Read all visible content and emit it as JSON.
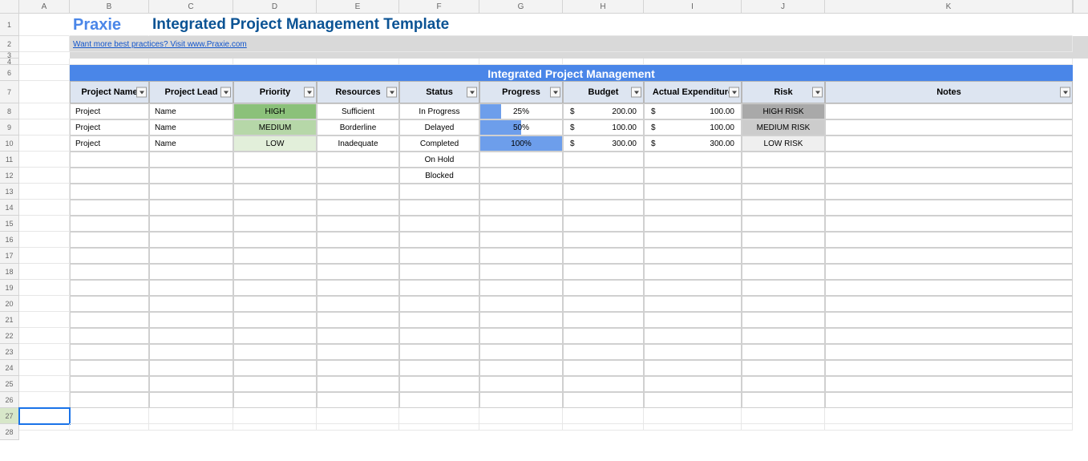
{
  "columns": {
    "letters": [
      "A",
      "B",
      "C",
      "D",
      "E",
      "F",
      "G",
      "H",
      "I",
      "J",
      "K"
    ],
    "widths": [
      63,
      99,
      105,
      104,
      103,
      100,
      104,
      101,
      122,
      104,
      309
    ]
  },
  "rows": {
    "labels_visible": [
      "1",
      "2",
      "3",
      "4",
      "6",
      "7",
      "8",
      "9",
      "10",
      "11",
      "12",
      "13",
      "14",
      "15",
      "16",
      "17",
      "18",
      "19",
      "20",
      "21",
      "22",
      "23",
      "24",
      "25",
      "26",
      "27",
      "28"
    ],
    "title_row_index": 0,
    "link_row_index": 1,
    "thin_row_index": 2,
    "hidden_row_index": 3,
    "banner_row_index": 4,
    "header_row_index": 5,
    "selected_label": "27"
  },
  "brand": {
    "name": "Praxie"
  },
  "title": "Integrated Project Management Template",
  "link": {
    "text": "Want more best practices? Visit www.Praxie.com"
  },
  "banner": "Integrated Project Management",
  "headers": [
    "Project Name",
    "Project Lead",
    "Priority",
    "Resources",
    "Status",
    "Progress",
    "Budget",
    "Actual Expenditure",
    "Risk",
    "Notes"
  ],
  "priority_colors": {
    "HIGH": "#8bc17a",
    "MEDIUM": "#b6d7a8",
    "LOW": "#e2efda"
  },
  "risk_colors": {
    "HIGH RISK": "#a9a9a9",
    "MEDIUM RISK": "#cccccc",
    "LOW RISK": "#efefef"
  },
  "progress_bar_color": "#6d9eeb",
  "table": {
    "rows": [
      {
        "name": "Project",
        "lead": "Name",
        "priority": "HIGH",
        "resources": "Sufficient",
        "status": "In Progress",
        "progress": 25,
        "budget": "200.00",
        "actual": "100.00",
        "risk": "HIGH RISK",
        "notes": ""
      },
      {
        "name": "Project",
        "lead": "Name",
        "priority": "MEDIUM",
        "resources": "Borderline",
        "status": "Delayed",
        "progress": 50,
        "budget": "100.00",
        "actual": "100.00",
        "risk": "MEDIUM RISK",
        "notes": ""
      },
      {
        "name": "Project",
        "lead": "Name",
        "priority": "LOW",
        "resources": "Inadequate",
        "status": "Completed",
        "progress": 100,
        "budget": "300.00",
        "actual": "300.00",
        "risk": "LOW RISK",
        "notes": ""
      }
    ],
    "extra_status": [
      "On Hold",
      "Blocked"
    ],
    "empty_rows": 14
  },
  "currency_symbol": "$",
  "colors": {
    "banner_bg": "#4a86e8",
    "banner_fg": "#ffffff",
    "header_bg": "#dde5f1",
    "brand_color": "#4a86e8",
    "title_color": "#0b5394",
    "link_color": "#1155cc",
    "grid_line": "#e7e7e7",
    "row2_bg": "#d9d9d9"
  }
}
